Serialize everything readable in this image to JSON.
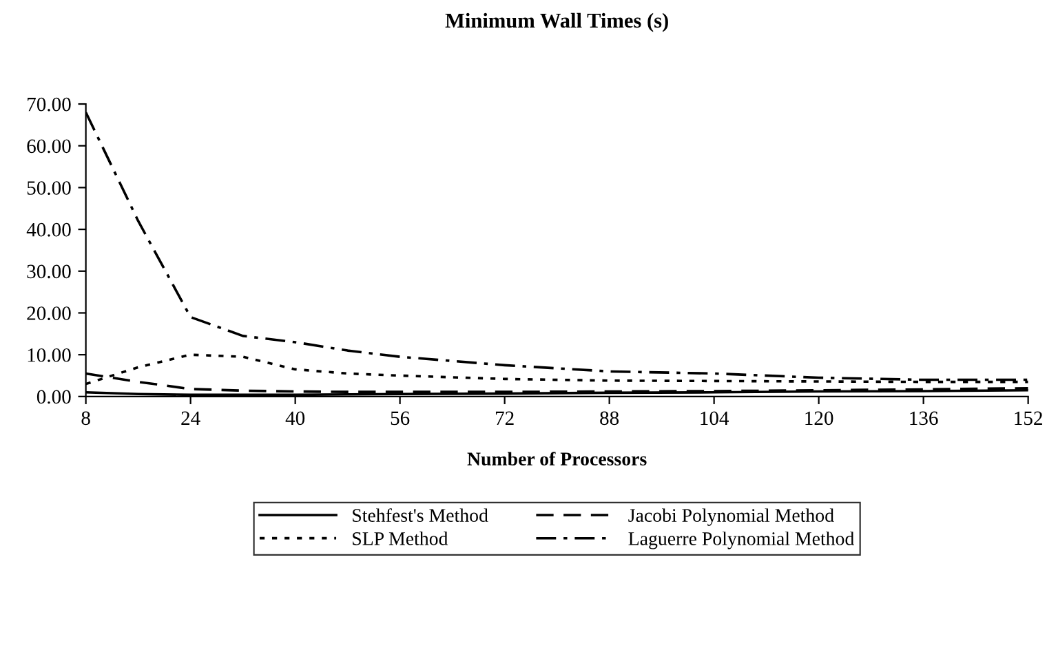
{
  "chart_data": {
    "type": "line",
    "title": "Minimum Wall Times (s)",
    "xlabel": "Number of Processors",
    "xlim": [
      8,
      152
    ],
    "xticks": [
      8,
      24,
      40,
      56,
      72,
      88,
      104,
      120,
      136,
      152
    ],
    "ylim": [
      0,
      70
    ],
    "yticks": [
      {
        "value": 0,
        "label": "0.00"
      },
      {
        "value": 10,
        "label": "10.00"
      },
      {
        "value": 20,
        "label": "20.00"
      },
      {
        "value": 30,
        "label": "30.00"
      },
      {
        "value": 40,
        "label": "40.00"
      },
      {
        "value": 50,
        "label": "50.00"
      },
      {
        "value": 60,
        "label": "60.00"
      },
      {
        "value": 70,
        "label": "70.00"
      }
    ],
    "grid": false,
    "legend": "bottom",
    "marker": "none",
    "x": [
      8,
      16,
      24,
      32,
      40,
      48,
      56,
      72,
      88,
      104,
      120,
      136,
      152
    ],
    "series": [
      {
        "name": "Stehfest's Method",
        "color": "#000000",
        "line_style": "solid",
        "values": [
          1.0,
          0.6,
          0.4,
          0.4,
          0.4,
          0.5,
          0.6,
          0.7,
          0.9,
          1.0,
          1.2,
          1.3,
          1.5
        ]
      },
      {
        "name": "SLP Method",
        "color": "#000000",
        "line_style": "dotted",
        "values": [
          3.0,
          7.0,
          10.0,
          9.5,
          6.5,
          5.5,
          5.0,
          4.2,
          3.8,
          3.7,
          3.6,
          3.5,
          3.5
        ]
      },
      {
        "name": "Jacobi Polynomial Method",
        "color": "#000000",
        "line_style": "dashed",
        "values": [
          5.5,
          3.5,
          1.8,
          1.4,
          1.2,
          1.1,
          1.1,
          1.1,
          1.2,
          1.3,
          1.5,
          1.7,
          2.0
        ]
      },
      {
        "name": "Laguerre Polynomial Method",
        "color": "#000000",
        "line_style": "dashdot",
        "values": [
          68,
          42,
          19,
          14.5,
          13,
          11,
          9.5,
          7.5,
          6,
          5.5,
          4.5,
          4,
          4
        ]
      }
    ]
  }
}
